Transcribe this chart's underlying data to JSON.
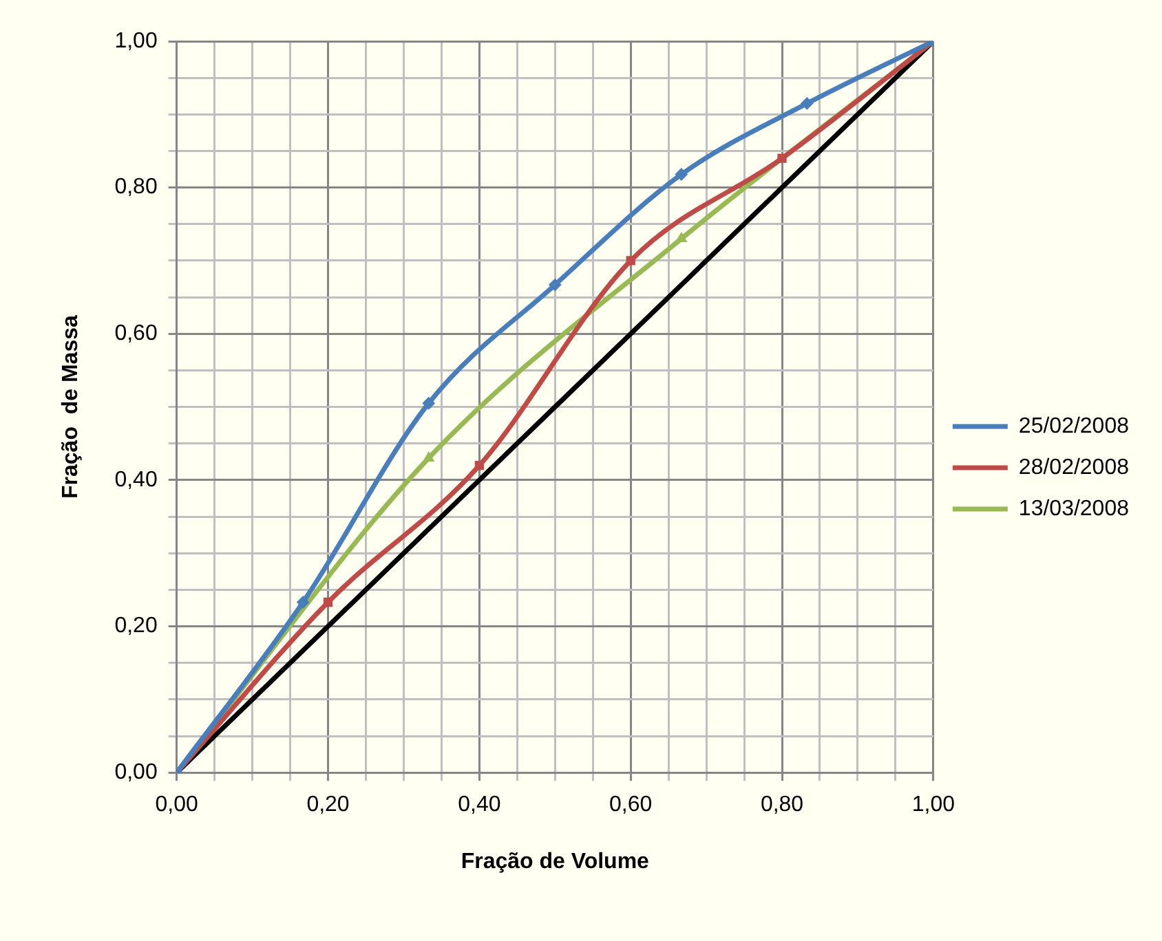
{
  "chart_data": {
    "type": "line",
    "xlabel": "Fração de Volume",
    "ylabel": "Fração  de Massa",
    "xlim": [
      0,
      1
    ],
    "ylim": [
      0,
      1
    ],
    "xticks": [
      {
        "value": 0,
        "label": "0,00"
      },
      {
        "value": 0.2,
        "label": "0,20"
      },
      {
        "value": 0.4,
        "label": "0,40"
      },
      {
        "value": 0.6,
        "label": "0,60"
      },
      {
        "value": 0.8,
        "label": "0,80"
      },
      {
        "value": 1,
        "label": "1,00"
      }
    ],
    "yticks": [
      {
        "value": 0,
        "label": "0,00"
      },
      {
        "value": 0.2,
        "label": "0,20"
      },
      {
        "value": 0.4,
        "label": "0,40"
      },
      {
        "value": 0.6,
        "label": "0,60"
      },
      {
        "value": 0.8,
        "label": "0,80"
      },
      {
        "value": 1,
        "label": "1,00"
      }
    ],
    "grid": true,
    "legend": "right",
    "line_style": "solid",
    "series": [
      {
        "name": "25/02/2008",
        "color": "#4a7ebb",
        "marker": "diamond",
        "x": [
          0,
          0.167,
          0.333,
          0.5,
          0.667,
          0.833,
          1
        ],
        "values": [
          0,
          0.233,
          0.505,
          0.667,
          0.818,
          0.915,
          1
        ]
      },
      {
        "name": "28/02/2008",
        "color": "#be4b48",
        "marker": "square",
        "x": [
          0,
          0.2,
          0.4,
          0.6,
          0.8,
          1
        ],
        "values": [
          0,
          0.233,
          0.42,
          0.7,
          0.84,
          1
        ]
      },
      {
        "name": "13/03/2008",
        "color": "#98b954",
        "marker": "triangle",
        "x": [
          0,
          0.333,
          0.667,
          1
        ],
        "values": [
          0,
          0.43,
          0.73,
          1
        ]
      },
      {
        "color": "#000000",
        "marker": "none",
        "x": [
          0,
          1
        ],
        "values": [
          0,
          1
        ]
      }
    ]
  }
}
